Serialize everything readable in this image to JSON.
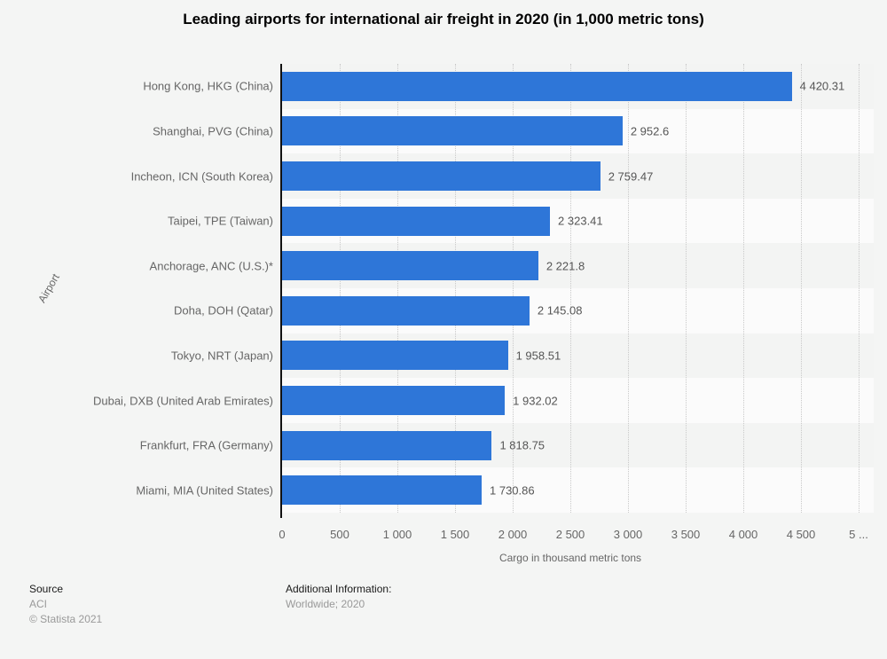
{
  "chart_data": {
    "type": "bar",
    "orientation": "horizontal",
    "title": "Leading airports for international air freight in 2020 (in 1,000 metric tons)",
    "categories": [
      "Hong Kong, HKG (China)",
      "Shanghai, PVG (China)",
      "Incheon, ICN (South Korea)",
      "Taipei, TPE (Taiwan)",
      "Anchorage, ANC (U.S.)*",
      "Doha, DOH (Qatar)",
      "Tokyo, NRT (Japan)",
      "Dubai, DXB (United Arab Emirates)",
      "Frankfurt, FRA (Germany)",
      "Miami, MIA (United States)"
    ],
    "values": [
      4420.31,
      2952.6,
      2759.47,
      2323.41,
      2221.8,
      2145.08,
      1958.51,
      1932.02,
      1818.75,
      1730.86
    ],
    "value_labels": [
      "4 420.31",
      "2 952.6",
      "2 759.47",
      "2 323.41",
      "2 221.8",
      "2 145.08",
      "1 958.51",
      "1 932.02",
      "1 818.75",
      "1 730.86"
    ],
    "xlabel": "Cargo in thousand metric tons",
    "ylabel": "Airport",
    "xlim": [
      0,
      5000
    ],
    "xticks": [
      0,
      500,
      1000,
      1500,
      2000,
      2500,
      3000,
      3500,
      4000,
      4500,
      5000
    ],
    "xtick_labels": [
      "0",
      "500",
      "1 000",
      "1 500",
      "2 000",
      "2 500",
      "3 000",
      "3 500",
      "4 000",
      "4 500",
      "5 ..."
    ],
    "grid": "vertical-dotted",
    "legend": "none",
    "bar_color": "#2e76d8"
  },
  "footer": {
    "source_label": "Source",
    "source_name": "ACI",
    "copyright": "© Statista 2021",
    "additional_label": "Additional Information:",
    "additional_value": "Worldwide; 2020"
  },
  "colors": {
    "background": "#f4f5f4",
    "stripe_dark": "#f3f4f3",
    "stripe_light": "#fbfbfb",
    "bar": "#2e76d8",
    "gridline": "#c9c9c9",
    "axis_line": "#111111",
    "text_primary": "#000000",
    "text_secondary": "#666666",
    "text_muted": "#999999"
  }
}
